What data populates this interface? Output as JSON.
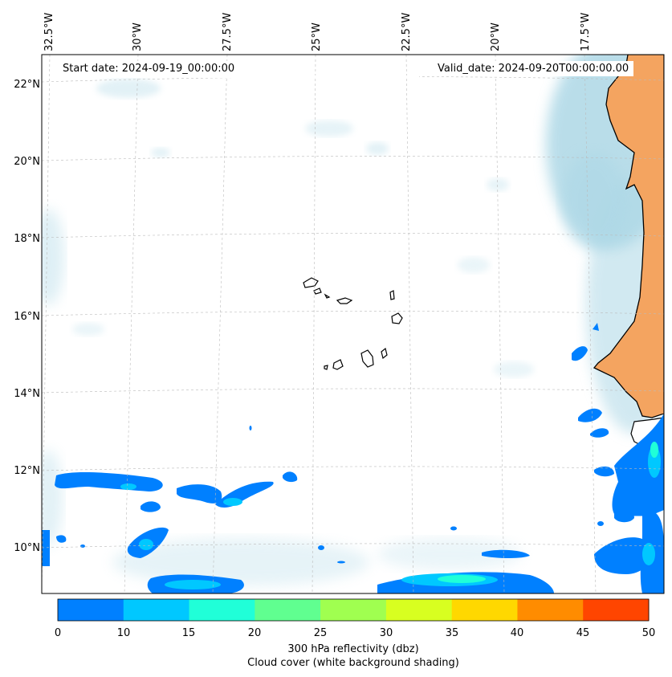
{
  "map": {
    "start_date": "Start date: 2024-09-19_00:00:00",
    "valid_date": "Valid_date: 2024-09-20T00:00:00.00",
    "longitude_labels": [
      "32.5°W",
      "30°W",
      "27.5°W",
      "25°W",
      "22.5°W",
      "20°W",
      "17.5°W"
    ],
    "latitude_labels": [
      "22°N",
      "20°N",
      "18°N",
      "16°N",
      "14°N",
      "12°N",
      "10°N"
    ],
    "colors": {
      "land": "#f4a460",
      "cloud": "#add8e6",
      "coastline": "#000000",
      "gridline": "#bbbbbb"
    }
  },
  "colorbar": {
    "ticks": [
      "0",
      "10",
      "15",
      "20",
      "25",
      "30",
      "35",
      "40",
      "45",
      "50"
    ],
    "colors": [
      "#0080ff",
      "#00c8ff",
      "#20ffd8",
      "#60ff90",
      "#a0ff50",
      "#d8ff20",
      "#ffd800",
      "#ff8c00",
      "#ff4500"
    ],
    "label_line1": "300 hPa reflectivity (dbz)",
    "label_line2": "Cloud cover (white background shading)"
  }
}
